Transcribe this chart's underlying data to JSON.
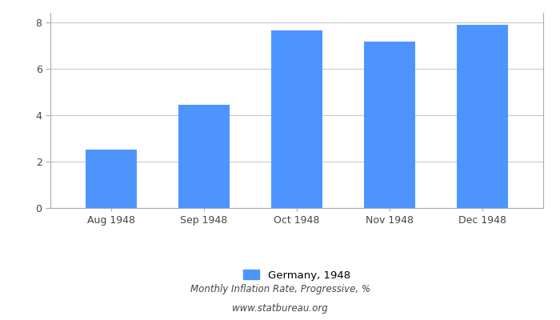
{
  "categories": [
    "Aug 1948",
    "Sep 1948",
    "Oct 1948",
    "Nov 1948",
    "Dec 1948"
  ],
  "values": [
    2.5,
    4.45,
    7.65,
    7.15,
    7.9
  ],
  "bar_color": "#4d94ff",
  "ylim": [
    0,
    8.4
  ],
  "yticks": [
    0,
    2,
    4,
    6,
    8
  ],
  "legend_label": "Germany, 1948",
  "subtitle": "Monthly Inflation Rate, Progressive, %",
  "website": "www.statbureau.org",
  "background_color": "#ffffff",
  "grid_color": "#c8c8c8",
  "text_color": "#444444",
  "spine_color": "#aaaaaa"
}
